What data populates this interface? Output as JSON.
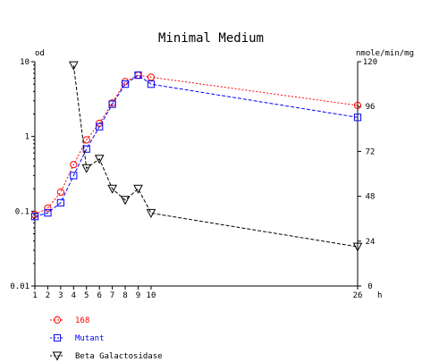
{
  "chart_data": {
    "type": "line",
    "title": "Minimal Medium",
    "x": [
      1,
      2,
      3,
      4,
      5,
      6,
      7,
      8,
      9,
      10,
      26
    ],
    "x_ticks": [
      "1",
      "2",
      "3",
      "4",
      "5",
      "6",
      "7",
      "8",
      "9",
      "10",
      "26"
    ],
    "x_unit": "h",
    "xlim": [
      1,
      26
    ],
    "y_left": {
      "unit": "od",
      "scale": "log",
      "range": [
        0.01,
        10
      ],
      "ticks": [
        0.01,
        0.1,
        1,
        10
      ],
      "tick_labels": [
        "0.01",
        "0.1",
        "1",
        "10"
      ]
    },
    "y_right": {
      "unit": "nmole/min/mg",
      "scale": "linear",
      "range": [
        0,
        120
      ],
      "ticks": [
        0,
        24,
        48,
        72,
        96,
        120
      ],
      "tick_labels": [
        "0",
        "24",
        "48",
        "72",
        "96",
        "120"
      ]
    },
    "series": [
      {
        "name": "168",
        "axis": "left",
        "color": "#ff0000",
        "marker": "circle",
        "line": "dotted",
        "x": [
          1,
          2,
          3,
          4,
          5,
          6,
          7,
          8,
          9,
          10,
          26
        ],
        "values": [
          0.09,
          0.11,
          0.18,
          0.42,
          0.9,
          1.5,
          2.8,
          5.4,
          6.6,
          6.2,
          2.6
        ]
      },
      {
        "name": "Mutant",
        "axis": "left",
        "color": "#0000ff",
        "marker": "square",
        "line": "dashed",
        "x": [
          1,
          2,
          3,
          4,
          5,
          6,
          7,
          8,
          9,
          10,
          26
        ],
        "values": [
          0.085,
          0.095,
          0.13,
          0.3,
          0.68,
          1.35,
          2.7,
          5.0,
          6.6,
          5.0,
          1.8
        ]
      },
      {
        "name": "Beta Galactosidase",
        "axis": "right",
        "color": "#000000",
        "marker": "triangle-down",
        "line": "dashed",
        "x": [
          4,
          5,
          6,
          7,
          8,
          9,
          10,
          26
        ],
        "values": [
          118,
          63,
          68,
          52,
          46,
          52,
          39,
          21
        ]
      }
    ],
    "legend_position": "bottom-left"
  }
}
